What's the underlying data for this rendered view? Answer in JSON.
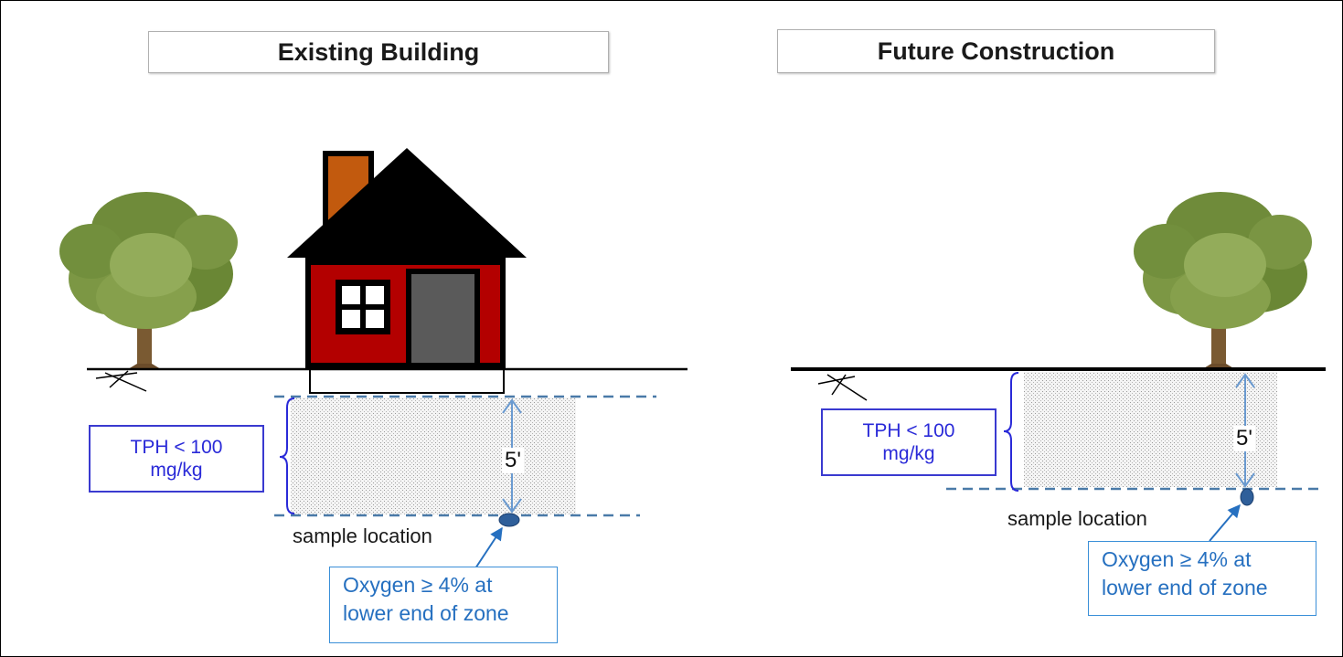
{
  "panels": [
    {
      "title": "Existing Building",
      "depth_label": "5'",
      "tph_line1": "TPH < 100",
      "tph_line2": "mg/kg",
      "sample_label": "sample location",
      "oxygen_line1": "Oxygen ≥ 4% at",
      "oxygen_line2": "lower end of zone"
    },
    {
      "title": "Future Construction",
      "depth_label": "5'",
      "tph_line1": "TPH < 100",
      "tph_line2": "mg/kg",
      "sample_label": "sample location",
      "oxygen_line1": "Oxygen ≥ 4% at",
      "oxygen_line2": "lower end of zone"
    }
  ],
  "colors": {
    "house_wall": "#b30000",
    "roof": "#000000",
    "chimney": "#c25a0e",
    "door": "#5a5a5a",
    "tph_text": "#2a2ad8",
    "oxygen_text": "#2670c0",
    "dashed_line": "#4a7aa8",
    "depth_arrow": "#6a9ad0",
    "sample_point": "#2f5f9a"
  }
}
